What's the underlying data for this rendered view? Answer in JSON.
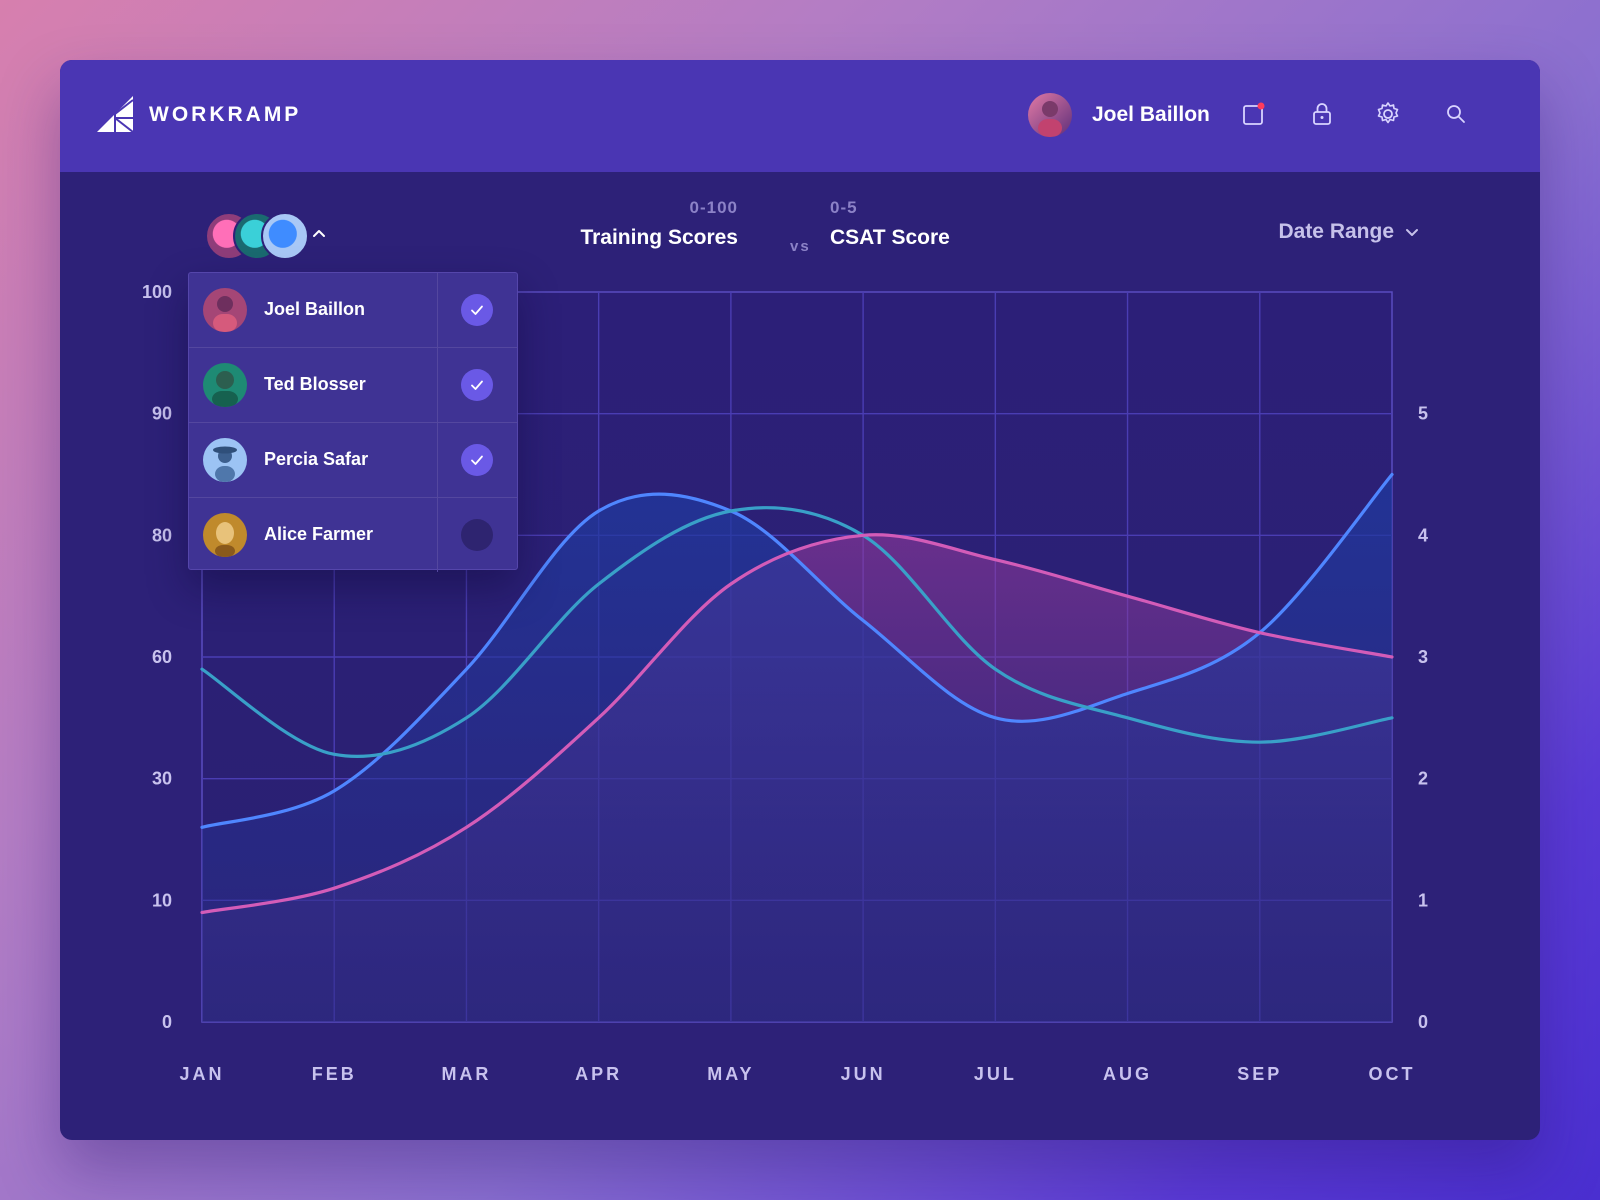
{
  "app": {
    "brand": "WORKRAMP"
  },
  "header": {
    "user_name": "Joel Baillon"
  },
  "icons": {
    "notification": "notification-icon",
    "lock": "lock-icon",
    "settings": "gear-icon",
    "search": "search-icon"
  },
  "colors": {
    "accent": "#6a59e6",
    "notification_dot": "#ff3b5c",
    "series_blue": "#4f86ff",
    "series_teal": "#39a0c8",
    "series_pink": "#d35cb8"
  },
  "toolbar": {
    "left_metric_range": "0-100",
    "left_metric": "Training Scores",
    "vs": "vs",
    "right_metric_range": "0-5",
    "right_metric": "CSAT Score",
    "date_range_label": "Date Range"
  },
  "user_filter": {
    "expanded": true,
    "users": [
      {
        "name": "Joel Baillon",
        "checked": true,
        "avatar_color": "#b04a7a"
      },
      {
        "name": "Ted Blosser",
        "checked": true,
        "avatar_color": "#1d8c7c"
      },
      {
        "name": "Percia Safar",
        "checked": true,
        "avatar_color": "#8fb8f2"
      },
      {
        "name": "Alice Farmer",
        "checked": false,
        "avatar_color": "#c38a2a"
      }
    ]
  },
  "chart_data": {
    "type": "area",
    "categories": [
      "JAN",
      "FEB",
      "MAR",
      "APR",
      "MAY",
      "JUN",
      "JUL",
      "AUG",
      "SEP",
      "OCT"
    ],
    "y_left_ticks": [
      "0",
      "10",
      "30",
      "60",
      "80",
      "90",
      "100"
    ],
    "y_right_ticks": [
      "0",
      "1",
      "2",
      "3",
      "4",
      "5"
    ],
    "y_left_range": [
      0,
      100
    ],
    "y_right_range": [
      0,
      5
    ],
    "grid": true,
    "series": [
      {
        "color": "#4f86ff",
        "values": [
          1.6,
          1.9,
          2.9,
          4.2,
          4.2,
          3.3,
          2.5,
          2.7,
          3.2,
          4.5
        ],
        "filled": true
      },
      {
        "color": "#39a0c8",
        "values": [
          2.9,
          2.2,
          2.5,
          3.6,
          4.2,
          4.0,
          2.9,
          2.5,
          2.3,
          2.5
        ],
        "filled": false
      },
      {
        "color": "#d35cb8",
        "values": [
          0.9,
          1.1,
          1.6,
          2.5,
          3.6,
          4.0,
          3.8,
          3.5,
          3.2,
          3.0
        ],
        "filled": true
      }
    ]
  }
}
